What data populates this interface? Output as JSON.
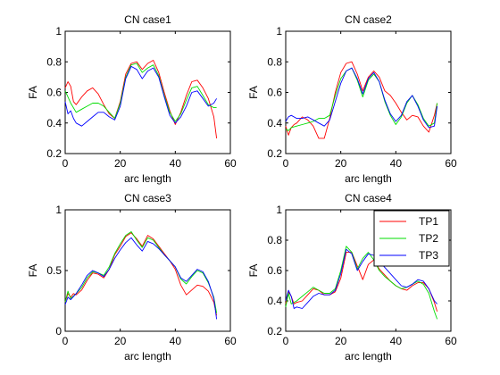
{
  "chart_data": [
    {
      "type": "line",
      "title": "CN case1",
      "xlabel": "arc length",
      "ylabel": "FA",
      "xlim": [
        0,
        60
      ],
      "ylim": [
        0.2,
        1
      ],
      "xticks": [
        0,
        20,
        40,
        60
      ],
      "yticks": [
        0.2,
        0.4,
        0.6,
        0.8,
        1
      ],
      "ytick_labels": [
        "0.2",
        "0.4",
        "0.6",
        "0.8",
        "1"
      ],
      "grid": false,
      "legend": null,
      "series": [
        {
          "name": "TP1",
          "color": "#ff0000",
          "x": [
            0,
            1,
            2,
            3,
            4,
            6,
            8,
            10,
            12,
            14,
            16,
            18,
            20,
            22,
            24,
            26,
            28,
            30,
            32,
            34,
            36,
            38,
            40,
            42,
            44,
            46,
            48,
            50,
            52,
            54,
            55
          ],
          "y": [
            0.63,
            0.67,
            0.64,
            0.54,
            0.52,
            0.57,
            0.61,
            0.63,
            0.59,
            0.52,
            0.46,
            0.43,
            0.54,
            0.72,
            0.79,
            0.8,
            0.75,
            0.79,
            0.81,
            0.73,
            0.6,
            0.48,
            0.39,
            0.47,
            0.58,
            0.67,
            0.68,
            0.63,
            0.56,
            0.44,
            0.3
          ]
        },
        {
          "name": "TP2",
          "color": "#00dd00",
          "x": [
            0,
            1,
            2,
            4,
            6,
            8,
            10,
            12,
            14,
            16,
            18,
            20,
            22,
            24,
            26,
            28,
            30,
            32,
            34,
            36,
            38,
            40,
            42,
            44,
            46,
            48,
            50,
            52,
            54,
            55
          ],
          "y": [
            0.61,
            0.57,
            0.53,
            0.47,
            0.49,
            0.51,
            0.53,
            0.53,
            0.51,
            0.47,
            0.43,
            0.53,
            0.7,
            0.78,
            0.79,
            0.73,
            0.76,
            0.78,
            0.71,
            0.58,
            0.47,
            0.41,
            0.46,
            0.55,
            0.63,
            0.64,
            0.58,
            0.52,
            0.5,
            0.5
          ]
        },
        {
          "name": "TP3",
          "color": "#0000ff",
          "x": [
            0,
            1,
            2,
            3,
            4,
            6,
            8,
            10,
            12,
            14,
            16,
            18,
            20,
            22,
            24,
            26,
            28,
            30,
            32,
            34,
            36,
            38,
            40,
            42,
            44,
            46,
            48,
            50,
            52,
            54,
            55
          ],
          "y": [
            0.54,
            0.46,
            0.48,
            0.43,
            0.4,
            0.38,
            0.41,
            0.44,
            0.47,
            0.47,
            0.44,
            0.42,
            0.51,
            0.69,
            0.77,
            0.75,
            0.69,
            0.74,
            0.76,
            0.7,
            0.57,
            0.45,
            0.4,
            0.44,
            0.51,
            0.6,
            0.61,
            0.56,
            0.51,
            0.53,
            0.56
          ]
        }
      ]
    },
    {
      "type": "line",
      "title": "CN case2",
      "xlabel": "arc length",
      "ylabel": "FA",
      "xlim": [
        0,
        60
      ],
      "ylim": [
        0.2,
        1
      ],
      "xticks": [
        0,
        20,
        40,
        60
      ],
      "yticks": [
        0.2,
        0.4,
        0.6,
        0.8,
        1
      ],
      "ytick_labels": [
        "0.2",
        "0.4",
        "0.6",
        "0.8",
        "1"
      ],
      "grid": false,
      "legend": null,
      "series": [
        {
          "name": "TP1",
          "color": "#ff0000",
          "x": [
            0,
            1,
            2,
            3,
            4,
            6,
            8,
            10,
            12,
            14,
            16,
            18,
            20,
            22,
            24,
            26,
            28,
            30,
            32,
            34,
            36,
            38,
            40,
            42,
            44,
            46,
            48,
            50,
            52,
            54,
            55
          ],
          "y": [
            0.38,
            0.32,
            0.37,
            0.39,
            0.4,
            0.44,
            0.42,
            0.38,
            0.3,
            0.3,
            0.43,
            0.6,
            0.73,
            0.79,
            0.8,
            0.72,
            0.61,
            0.7,
            0.74,
            0.7,
            0.61,
            0.58,
            0.53,
            0.47,
            0.42,
            0.45,
            0.44,
            0.38,
            0.34,
            0.45,
            0.53
          ]
        },
        {
          "name": "TP2",
          "color": "#00dd00",
          "x": [
            0,
            1,
            2,
            4,
            6,
            8,
            10,
            12,
            14,
            16,
            18,
            20,
            22,
            24,
            26,
            28,
            30,
            32,
            34,
            36,
            38,
            40,
            42,
            44,
            46,
            48,
            50,
            52,
            54,
            55
          ],
          "y": [
            0.36,
            0.35,
            0.37,
            0.38,
            0.39,
            0.4,
            0.41,
            0.43,
            0.43,
            0.45,
            0.58,
            0.69,
            0.74,
            0.76,
            0.68,
            0.57,
            0.68,
            0.72,
            0.67,
            0.54,
            0.45,
            0.39,
            0.44,
            0.53,
            0.58,
            0.52,
            0.43,
            0.38,
            0.4,
            0.53
          ]
        },
        {
          "name": "TP3",
          "color": "#0000ff",
          "x": [
            0,
            1,
            2,
            4,
            6,
            8,
            10,
            12,
            14,
            16,
            18,
            20,
            22,
            24,
            26,
            28,
            30,
            32,
            34,
            36,
            38,
            40,
            42,
            44,
            46,
            48,
            50,
            52,
            54,
            55
          ],
          "y": [
            0.41,
            0.44,
            0.45,
            0.43,
            0.43,
            0.44,
            0.42,
            0.4,
            0.38,
            0.42,
            0.54,
            0.66,
            0.74,
            0.76,
            0.69,
            0.59,
            0.69,
            0.73,
            0.67,
            0.55,
            0.46,
            0.41,
            0.45,
            0.54,
            0.58,
            0.51,
            0.42,
            0.37,
            0.38,
            0.51
          ]
        }
      ]
    },
    {
      "type": "line",
      "title": "CN case3",
      "xlabel": "arc length",
      "ylabel": "FA",
      "xlim": [
        0,
        60
      ],
      "ylim": [
        0,
        1
      ],
      "xticks": [
        0,
        20,
        40,
        60
      ],
      "yticks": [
        0,
        0.5,
        1
      ],
      "ytick_labels": [
        "0",
        "0.5",
        "1"
      ],
      "grid": false,
      "legend": null,
      "series": [
        {
          "name": "TP1",
          "color": "#ff0000",
          "x": [
            0,
            1,
            2,
            3,
            4,
            6,
            8,
            10,
            12,
            14,
            16,
            18,
            20,
            22,
            24,
            26,
            28,
            30,
            32,
            34,
            36,
            38,
            40,
            42,
            44,
            46,
            48,
            50,
            52,
            54,
            55
          ],
          "y": [
            0.24,
            0.31,
            0.28,
            0.31,
            0.3,
            0.34,
            0.42,
            0.48,
            0.47,
            0.44,
            0.51,
            0.63,
            0.7,
            0.78,
            0.81,
            0.76,
            0.7,
            0.79,
            0.76,
            0.7,
            0.64,
            0.58,
            0.51,
            0.38,
            0.3,
            0.34,
            0.38,
            0.37,
            0.33,
            0.24,
            0.13
          ]
        },
        {
          "name": "TP2",
          "color": "#00dd00",
          "x": [
            0,
            1,
            2,
            4,
            6,
            8,
            10,
            12,
            14,
            16,
            18,
            20,
            22,
            24,
            26,
            28,
            30,
            32,
            34,
            36,
            38,
            40,
            42,
            44,
            46,
            48,
            50,
            52,
            54,
            55
          ],
          "y": [
            0.24,
            0.33,
            0.27,
            0.31,
            0.36,
            0.44,
            0.49,
            0.48,
            0.46,
            0.53,
            0.64,
            0.72,
            0.79,
            0.82,
            0.75,
            0.69,
            0.77,
            0.75,
            0.69,
            0.63,
            0.58,
            0.53,
            0.43,
            0.39,
            0.45,
            0.5,
            0.48,
            0.4,
            0.28,
            0.15
          ]
        },
        {
          "name": "TP3",
          "color": "#0000ff",
          "x": [
            0,
            1,
            2,
            4,
            6,
            8,
            10,
            12,
            14,
            16,
            18,
            20,
            22,
            24,
            26,
            28,
            30,
            32,
            34,
            36,
            38,
            40,
            42,
            44,
            46,
            48,
            50,
            52,
            54,
            55
          ],
          "y": [
            0.22,
            0.28,
            0.26,
            0.31,
            0.38,
            0.46,
            0.5,
            0.48,
            0.45,
            0.51,
            0.6,
            0.67,
            0.73,
            0.77,
            0.71,
            0.66,
            0.74,
            0.72,
            0.68,
            0.63,
            0.58,
            0.53,
            0.44,
            0.41,
            0.46,
            0.51,
            0.49,
            0.41,
            0.27,
            0.1
          ]
        }
      ]
    },
    {
      "type": "line",
      "title": "CN case4",
      "xlabel": "arc length",
      "ylabel": "FA",
      "xlim": [
        0,
        60
      ],
      "ylim": [
        0.2,
        1
      ],
      "xticks": [
        0,
        20,
        40,
        60
      ],
      "yticks": [
        0.2,
        0.4,
        0.6,
        0.8,
        1
      ],
      "ytick_labels": [
        "0.2",
        "0.4",
        "0.6",
        "0.8",
        "1"
      ],
      "grid": false,
      "legend": {
        "position": "top-right",
        "entries": [
          "TP1",
          "TP2",
          "TP3"
        ]
      },
      "series": [
        {
          "name": "TP1",
          "color": "#ff0000",
          "x": [
            0,
            1,
            2,
            3,
            4,
            6,
            8,
            10,
            12,
            14,
            16,
            18,
            20,
            22,
            24,
            26,
            28,
            30,
            32,
            34,
            36,
            38,
            40,
            42,
            44,
            46,
            48,
            50,
            52,
            54,
            55
          ],
          "y": [
            0.38,
            0.46,
            0.43,
            0.38,
            0.39,
            0.4,
            0.44,
            0.48,
            0.47,
            0.44,
            0.44,
            0.46,
            0.55,
            0.72,
            0.72,
            0.63,
            0.54,
            0.64,
            0.67,
            0.61,
            0.57,
            0.53,
            0.5,
            0.48,
            0.47,
            0.5,
            0.52,
            0.52,
            0.48,
            0.39,
            0.33
          ]
        },
        {
          "name": "TP2",
          "color": "#00dd00",
          "x": [
            0,
            1,
            2,
            4,
            6,
            8,
            10,
            12,
            14,
            16,
            18,
            20,
            22,
            24,
            26,
            28,
            30,
            32,
            34,
            36,
            38,
            40,
            42,
            44,
            46,
            48,
            50,
            52,
            54,
            55
          ],
          "y": [
            0.36,
            0.45,
            0.38,
            0.4,
            0.43,
            0.46,
            0.49,
            0.47,
            0.45,
            0.45,
            0.48,
            0.6,
            0.76,
            0.72,
            0.61,
            0.68,
            0.72,
            0.67,
            0.6,
            0.56,
            0.53,
            0.5,
            0.48,
            0.49,
            0.51,
            0.53,
            0.51,
            0.45,
            0.33,
            0.28
          ]
        },
        {
          "name": "TP3",
          "color": "#0000ff",
          "x": [
            0,
            1,
            2,
            3,
            4,
            6,
            8,
            10,
            12,
            14,
            16,
            18,
            20,
            22,
            24,
            26,
            28,
            30,
            32,
            34,
            36,
            38,
            40,
            42,
            44,
            46,
            48,
            50,
            52,
            54,
            55
          ],
          "y": [
            0.4,
            0.47,
            0.43,
            0.35,
            0.36,
            0.35,
            0.39,
            0.43,
            0.45,
            0.44,
            0.44,
            0.47,
            0.58,
            0.74,
            0.71,
            0.6,
            0.66,
            0.71,
            0.7,
            0.66,
            0.62,
            0.58,
            0.54,
            0.5,
            0.49,
            0.51,
            0.54,
            0.53,
            0.48,
            0.4,
            0.38
          ]
        }
      ]
    }
  ]
}
